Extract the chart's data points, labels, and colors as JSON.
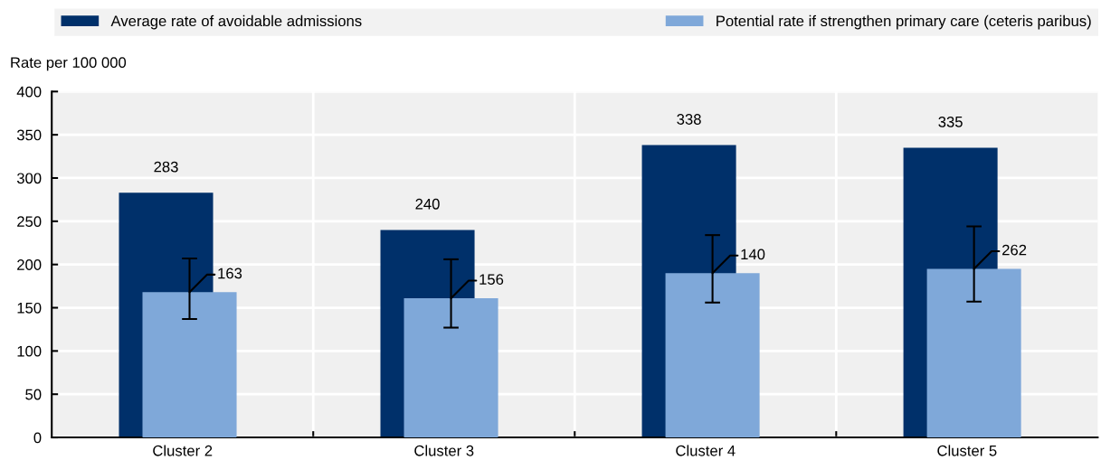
{
  "chart_data": {
    "type": "bar",
    "categories": [
      "Cluster 2",
      "Cluster 3",
      "Cluster 4",
      "Cluster 5"
    ],
    "ylabel": "Rate per 100 000",
    "series": [
      {
        "name": "Average rate of avoidable admissions",
        "color": "#00306a",
        "values": [
          283,
          240,
          338,
          335
        ],
        "value_labels": [
          "283",
          "240",
          "338",
          "335"
        ]
      },
      {
        "name": "Potential rate if strengthen primary care (ceteris paribus)",
        "color": "#7fa8d9",
        "values": [
          168,
          161,
          190,
          195
        ],
        "errors": [
          [
            137,
            207
          ],
          [
            127,
            206
          ],
          [
            156,
            234
          ],
          [
            157,
            244
          ]
        ]
      }
    ],
    "annotations": [
      {
        "text": "163",
        "x": "Cluster 2",
        "y": 168
      },
      {
        "text": "156",
        "x": "Cluster 3",
        "y": 161
      },
      {
        "text": "140",
        "x": "Cluster 4",
        "y": 190
      },
      {
        "text": "262",
        "x": "Cluster 5",
        "y": 195
      }
    ],
    "ylim": [
      0,
      400
    ],
    "yticks": [
      0,
      50,
      100,
      150,
      200,
      250,
      300,
      350,
      400
    ],
    "grid": true,
    "legend": "top"
  }
}
